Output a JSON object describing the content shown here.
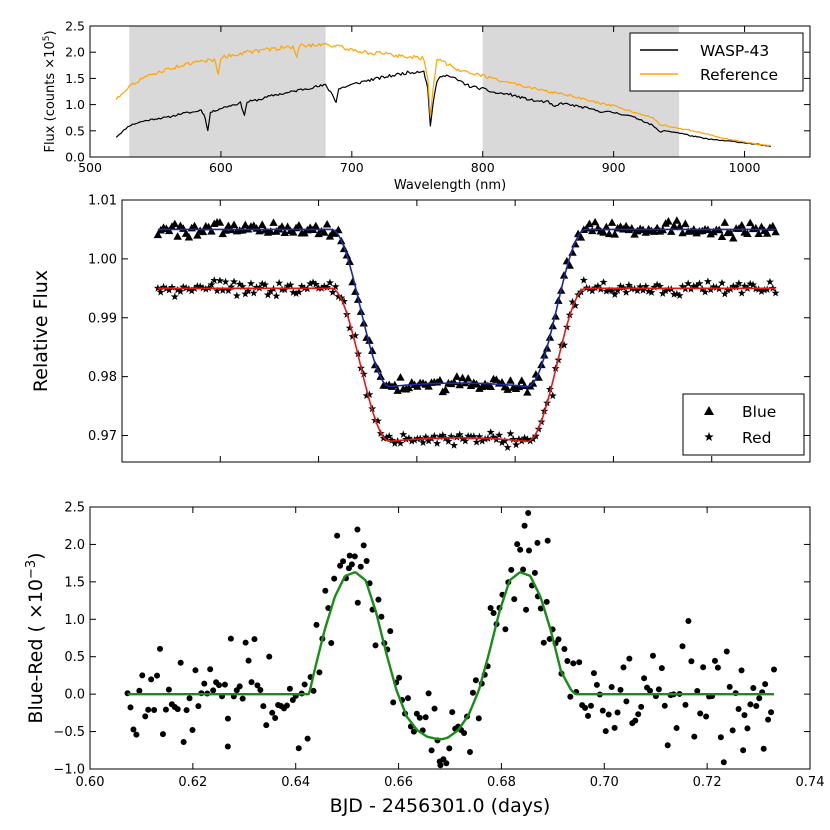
{
  "chart_data": [
    {
      "id": "spectrum",
      "type": "line",
      "xlabel": "Wavelength (nm)",
      "ylabel": "Flux (counts ×10^5)",
      "ylabel_parts": {
        "main": "Flux (counts ×10",
        "sup": "5",
        "close": ")"
      },
      "xlim": [
        500,
        1050
      ],
      "ylim": [
        0,
        2.5
      ],
      "xticks": [
        500,
        600,
        700,
        800,
        900,
        1000
      ],
      "xtick_labels": [
        "500",
        "600",
        "700",
        "800",
        "900",
        "1000"
      ],
      "yticks": [
        0,
        0.5,
        1.0,
        1.5,
        2.0,
        2.5
      ],
      "ytick_labels": [
        "0.0",
        "0.5",
        "1.0",
        "1.5",
        "2.0",
        "2.5"
      ],
      "shaded_bands": [
        [
          530,
          680
        ],
        [
          800,
          950
        ]
      ],
      "shade_color": "#d9d9d9",
      "legend": {
        "placement": "top-right",
        "entries": [
          "WASP-43",
          "Reference"
        ]
      },
      "series": [
        {
          "name": "WASP-43",
          "color": "#000000",
          "x": [
            520,
            530,
            540,
            550,
            560,
            570,
            580,
            585,
            588,
            590,
            592,
            600,
            610,
            615,
            618,
            620,
            630,
            640,
            650,
            655,
            660,
            670,
            680,
            685,
            688,
            690,
            700,
            710,
            720,
            730,
            740,
            750,
            755,
            758,
            760,
            762,
            765,
            770,
            780,
            790,
            800,
            810,
            820,
            830,
            840,
            850,
            855,
            860,
            870,
            880,
            890,
            900,
            910,
            920,
            930,
            935,
            940,
            950,
            960,
            970,
            980,
            990,
            1000,
            1010,
            1020
          ],
          "y": [
            0.38,
            0.6,
            0.68,
            0.73,
            0.76,
            0.83,
            0.86,
            0.9,
            0.75,
            0.5,
            0.85,
            0.93,
            1.0,
            1.03,
            0.8,
            1.05,
            1.1,
            1.18,
            1.22,
            1.25,
            1.28,
            1.33,
            1.37,
            1.2,
            1.05,
            1.3,
            1.38,
            1.45,
            1.5,
            1.55,
            1.6,
            1.63,
            1.65,
            1.3,
            0.6,
            1.0,
            1.45,
            1.58,
            1.48,
            1.35,
            1.3,
            1.22,
            1.2,
            1.13,
            1.07,
            1.05,
            0.95,
            1.03,
            0.98,
            0.93,
            0.87,
            0.85,
            0.8,
            0.72,
            0.6,
            0.48,
            0.5,
            0.46,
            0.4,
            0.35,
            0.32,
            0.3,
            0.27,
            0.24,
            0.2
          ]
        },
        {
          "name": "Reference",
          "color": "#ffa500",
          "x": [
            520,
            530,
            540,
            550,
            560,
            570,
            580,
            590,
            595,
            598,
            600,
            610,
            620,
            630,
            640,
            650,
            655,
            658,
            660,
            670,
            680,
            690,
            700,
            710,
            720,
            730,
            740,
            750,
            755,
            758,
            760,
            762,
            765,
            770,
            780,
            790,
            800,
            810,
            820,
            830,
            840,
            850,
            860,
            870,
            880,
            890,
            900,
            910,
            920,
            930,
            935,
            940,
            950,
            960,
            970,
            980,
            990,
            1000,
            1010,
            1020
          ],
          "y": [
            1.1,
            1.35,
            1.5,
            1.6,
            1.68,
            1.75,
            1.8,
            1.85,
            1.85,
            1.6,
            1.9,
            1.95,
            2.0,
            2.03,
            2.06,
            2.1,
            2.1,
            1.9,
            2.12,
            2.14,
            2.16,
            2.1,
            2.05,
            2.0,
            1.98,
            1.95,
            1.92,
            1.9,
            1.88,
            1.5,
            0.8,
            1.3,
            1.85,
            1.82,
            1.68,
            1.62,
            1.55,
            1.48,
            1.43,
            1.35,
            1.3,
            1.25,
            1.2,
            1.15,
            1.08,
            1.02,
            0.97,
            0.9,
            0.83,
            0.75,
            0.62,
            0.6,
            0.55,
            0.5,
            0.45,
            0.38,
            0.33,
            0.28,
            0.24,
            0.22
          ]
        }
      ]
    },
    {
      "id": "lightcurve",
      "type": "scatter",
      "xlabel": "",
      "ylabel": "Relative Flux",
      "xlim": [
        0.6,
        0.74
      ],
      "ylim": [
        0.9655,
        1.01
      ],
      "xticks": [
        0.6,
        0.62,
        0.64,
        0.66,
        0.68,
        0.7,
        0.72,
        0.74
      ],
      "yticks": [
        0.97,
        0.98,
        0.99,
        1.0,
        1.01
      ],
      "ytick_labels": [
        "0.97",
        "0.98",
        "0.99",
        "1.00",
        "1.01"
      ],
      "legend": {
        "placement": "bottom-right",
        "entries": [
          "Blue",
          "Red"
        ]
      },
      "x_range_points": [
        0.6073,
        0.733
      ],
      "points_per_series": 220,
      "series": [
        {
          "name": "Blue",
          "marker": "triangle",
          "marker_color": "#000000",
          "fit_color": "#1f2a9c",
          "baseline": 1.005,
          "depth": 0.0273,
          "t_center": 0.6685,
          "ingress_start": 0.6426,
          "ingress_end": 0.6546,
          "egress_start": 0.6824,
          "egress_end": 0.6944,
          "bottom_curvature": 0.0012,
          "scatter": 0.0006
        },
        {
          "name": "Red",
          "marker": "star",
          "marker_color": "#000000",
          "fit_color": "#e31a1c",
          "baseline": 0.995,
          "depth": 0.0266,
          "t_center": 0.6685,
          "ingress_start": 0.6426,
          "ingress_end": 0.6546,
          "egress_start": 0.6824,
          "egress_end": 0.6944,
          "bottom_curvature": 0.0012,
          "scatter": 0.0006
        }
      ]
    },
    {
      "id": "difference",
      "type": "scatter",
      "xlabel": "BJD - 2456301.0 (days)",
      "ylabel": "Blue-Red (×10^-3)",
      "ylabel_parts": {
        "main": "Blue-Red ( ×10",
        "sup": "−3",
        "close": ")"
      },
      "xlim": [
        0.6,
        0.74
      ],
      "ylim": [
        -1.0,
        2.5
      ],
      "xticks": [
        0.6,
        0.62,
        0.64,
        0.66,
        0.68,
        0.7,
        0.72,
        0.74
      ],
      "xtick_labels": [
        "0.60",
        "0.62",
        "0.64",
        "0.66",
        "0.68",
        "0.70",
        "0.72",
        "0.74"
      ],
      "yticks": [
        -1.0,
        -0.5,
        0.0,
        0.5,
        1.0,
        1.5,
        2.0,
        2.5
      ],
      "ytick_labels": [
        "−1.0",
        "−0.5",
        "0.0",
        "0.5",
        "1.0",
        "1.5",
        "2.0",
        "2.5"
      ],
      "fit": {
        "color": "#1a8c1a",
        "x": [
          0.6073,
          0.6426,
          0.6436,
          0.6456,
          0.6476,
          0.6496,
          0.6516,
          0.6536,
          0.6556,
          0.6576,
          0.6596,
          0.6616,
          0.6636,
          0.6656,
          0.6676,
          0.6686,
          0.6696,
          0.6716,
          0.6736,
          0.6756,
          0.6776,
          0.6796,
          0.6816,
          0.6836,
          0.6856,
          0.6876,
          0.6896,
          0.6916,
          0.6936,
          0.6944,
          0.733
        ],
        "y": [
          0.0,
          0.0,
          0.3,
          0.85,
          1.3,
          1.58,
          1.63,
          1.52,
          1.1,
          0.55,
          0.05,
          -0.3,
          -0.48,
          -0.57,
          -0.6,
          -0.6,
          -0.58,
          -0.48,
          -0.28,
          0.05,
          0.55,
          1.1,
          1.52,
          1.63,
          1.58,
          1.3,
          0.85,
          0.3,
          0.05,
          0.0,
          0.0
        ]
      },
      "points": {
        "color": "#000000",
        "count": 220,
        "x_range": [
          0.6073,
          0.733
        ],
        "scatter": 0.33,
        "outliers": [
          {
            "x": 0.652,
            "y": 2.2
          },
          {
            "x": 0.6505,
            "y": 1.85
          },
          {
            "x": 0.6852,
            "y": 2.42
          },
          {
            "x": 0.6845,
            "y": 2.25
          },
          {
            "x": 0.687,
            "y": 2.02
          },
          {
            "x": 0.689,
            "y": 2.05
          },
          {
            "x": 0.668,
            "y": -0.9
          },
          {
            "x": 0.6268,
            "y": -0.7
          },
          {
            "x": 0.727,
            "y": -0.75
          },
          {
            "x": 0.731,
            "y": -0.73
          }
        ]
      }
    }
  ]
}
